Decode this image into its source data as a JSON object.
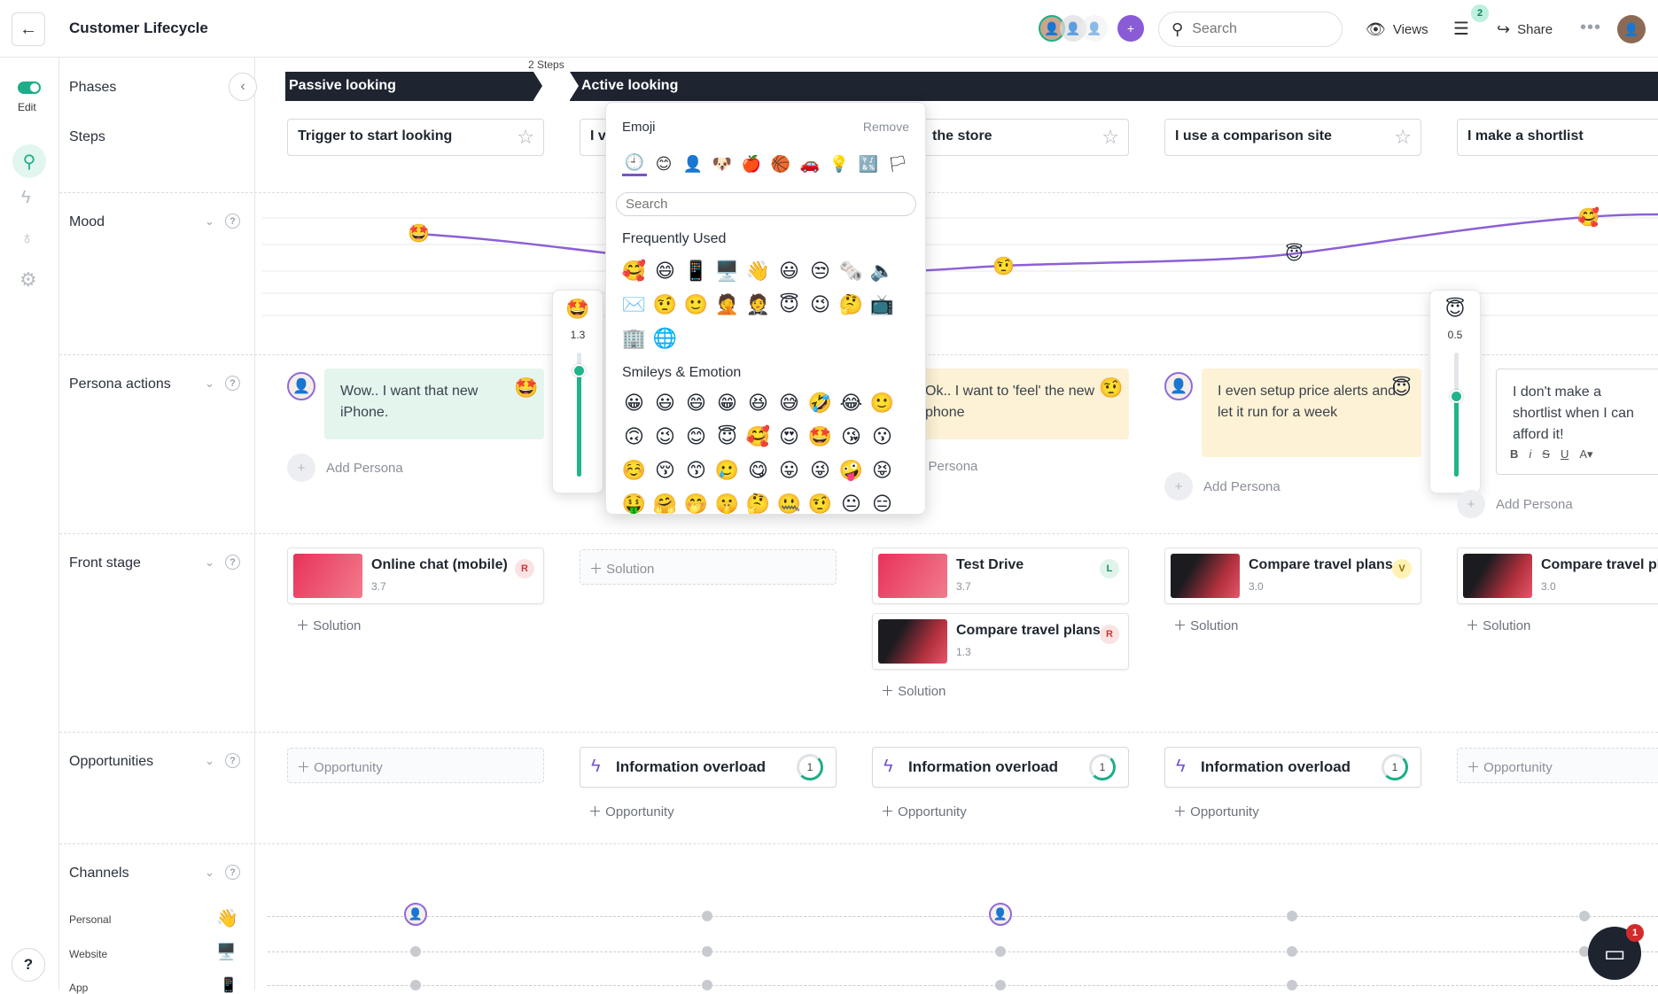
{
  "header": {
    "title": "Customer Lifecycle",
    "search_placeholder": "Search",
    "views_label": "Views",
    "filter_count": "2",
    "share_label": "Share"
  },
  "rail": {
    "edit_label": "Edit"
  },
  "rows": {
    "phases": "Phases",
    "steps": "Steps",
    "mood": "Mood",
    "persona_actions": "Persona actions",
    "front_stage": "Front stage",
    "opportunities": "Opportunities",
    "channels": "Channels"
  },
  "phases": [
    {
      "label": "Passive looking"
    },
    {
      "label": "Active looking"
    }
  ],
  "phase_gap_label": "2 Steps",
  "steps": [
    "Trigger to start looking",
    "I v",
    "the store",
    "I use a comparison site",
    "I make a shortlist"
  ],
  "mood_sliders": [
    {
      "emoji": "🤩",
      "value": "1.3",
      "level": 0.65
    },
    {
      "emoji": "😇",
      "value": "0.5",
      "level": 0.55
    }
  ],
  "persona": {
    "bubbles": [
      {
        "text": "Wow.. I want that new iPhone.",
        "emoji": "🤩"
      },
      {
        "text": "Ok.. I want to 'feel' the new phone",
        "emoji": "🤨"
      },
      {
        "text": "I even setup price alerts and let it run for a week",
        "emoji": "😇"
      },
      {
        "text": "I don't make a shortlist when I can afford it!",
        "emoji": ""
      }
    ],
    "add_persona": "Add Persona",
    "add_persona_partial": "d Persona",
    "format_buttons": [
      "B",
      "i",
      "S",
      "U",
      "A▾"
    ]
  },
  "front_stage": {
    "cards": [
      {
        "title": "Online chat (mobile)",
        "score": "3.7",
        "badge": "R"
      },
      {
        "title": "Test Drive",
        "score": "3.7",
        "badge": "L"
      },
      {
        "title": "Compare travel plans",
        "score": "1.3",
        "badge": "R"
      },
      {
        "title": "Compare travel plans",
        "score": "3.0",
        "badge": "V"
      },
      {
        "title": "Compare travel pl",
        "score": "3.0",
        "badge": ""
      }
    ],
    "add_solution": "Solution"
  },
  "opportunities": {
    "cards": [
      {
        "title": "Information overload",
        "count": "1"
      },
      {
        "title": "Information overload",
        "count": "1"
      },
      {
        "title": "Information overload",
        "count": "1"
      }
    ],
    "add_opportunity": "Opportunity"
  },
  "channels": {
    "items": [
      {
        "label": "Personal",
        "icon": "👋"
      },
      {
        "label": "Website",
        "icon": "🖥️"
      },
      {
        "label": "App",
        "icon": "📱"
      }
    ]
  },
  "emoji_picker": {
    "title": "Emoji",
    "remove_label": "Remove",
    "search_placeholder": "Search",
    "categories": [
      "🕘",
      "😊",
      "👤",
      "🐶",
      "🍎",
      "🏀",
      "🚗",
      "💡",
      "🔣",
      "🏳"
    ],
    "frequently_used_label": "Frequently Used",
    "frequently_used": [
      "🥰",
      "😄",
      "📱",
      "🖥️",
      "👋",
      "😃",
      "😒",
      "🗞️",
      "🔈",
      "✉️",
      "🤨",
      "🙂",
      "🤦",
      "🤵",
      "😇",
      "😉",
      "🤔",
      "📺",
      "🏢",
      "🌐"
    ],
    "smileys_label": "Smileys & Emotion",
    "smileys": [
      "😀",
      "😃",
      "😄",
      "😁",
      "😆",
      "😅",
      "🤣",
      "😂",
      "🙂",
      "🙃",
      "😉",
      "😊",
      "😇",
      "🥰",
      "😍",
      "🤩",
      "😘",
      "😗",
      "☺️",
      "😚",
      "😙",
      "🥲",
      "😋",
      "😛",
      "😜",
      "🤪",
      "😝",
      "🤑",
      "🤗",
      "🤭",
      "🤫",
      "🤔",
      "🤐",
      "🤨",
      "😐",
      "😑"
    ]
  },
  "chat_unread": "1",
  "help_label": "?"
}
